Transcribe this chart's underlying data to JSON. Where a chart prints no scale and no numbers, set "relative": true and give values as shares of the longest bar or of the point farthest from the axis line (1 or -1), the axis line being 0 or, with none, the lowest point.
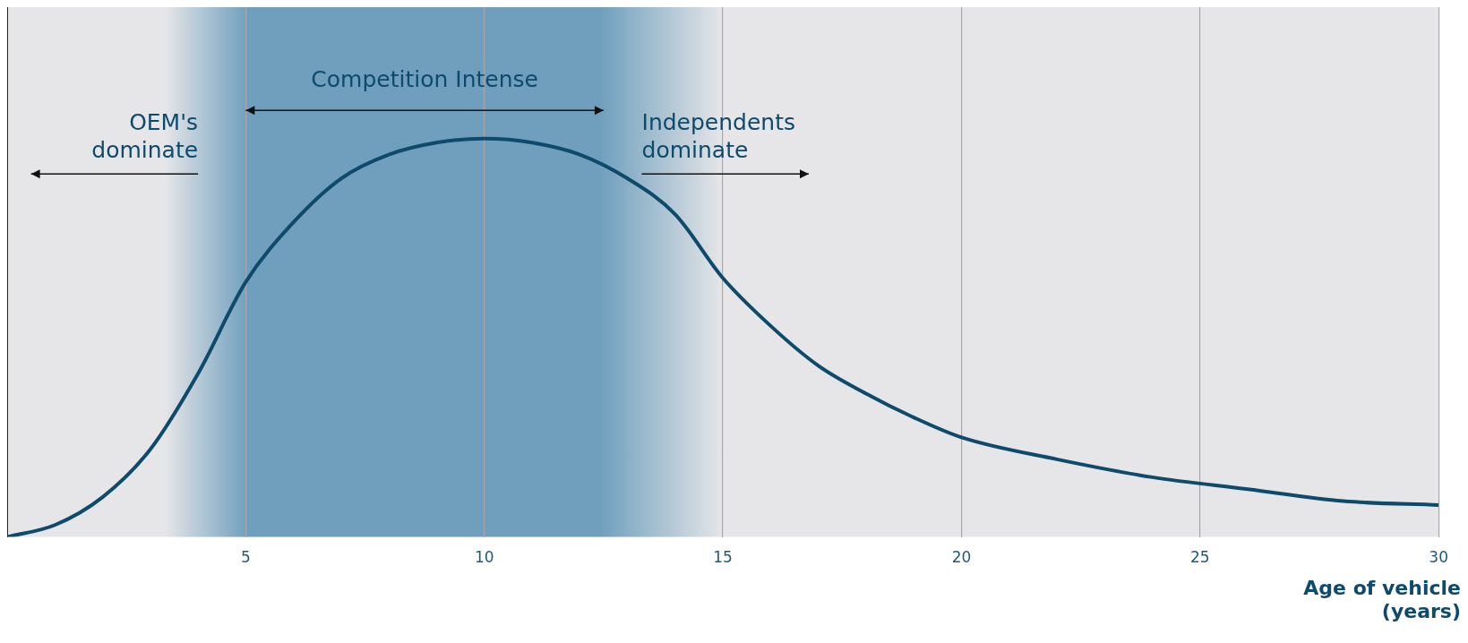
{
  "chart_data": {
    "type": "line",
    "relative": true,
    "xlabel": "Age of vehicle\n(years)",
    "x": [
      0,
      1,
      2,
      3,
      4,
      5,
      6,
      7,
      8,
      9,
      10,
      11,
      12,
      13,
      14,
      15,
      16,
      17,
      18,
      19,
      20,
      22,
      24,
      26,
      28,
      30
    ],
    "series": [
      {
        "color": "#0d4a6b",
        "values": [
          0,
          0.03,
          0.1,
          0.22,
          0.41,
          0.64,
          0.79,
          0.9,
          0.96,
          0.99,
          1,
          0.99,
          0.96,
          0.9,
          0.81,
          0.65,
          0.53,
          0.43,
          0.36,
          0.3,
          0.25,
          0.195,
          0.15,
          0.12,
          0.09,
          0.08
        ]
      }
    ],
    "xlim": [
      0,
      30
    ],
    "xticks": [
      5,
      10,
      15,
      20,
      25,
      30
    ],
    "bands": [
      {
        "axis": "x",
        "from": 3.3,
        "to": 15,
        "color": "#6f9fbd"
      }
    ],
    "annotations": [
      "Competition Intense",
      "OEM's\ndominate",
      "Independents\ndominate"
    ],
    "grid": "x",
    "marker": "none",
    "line_style": "solid",
    "legend": false
  }
}
